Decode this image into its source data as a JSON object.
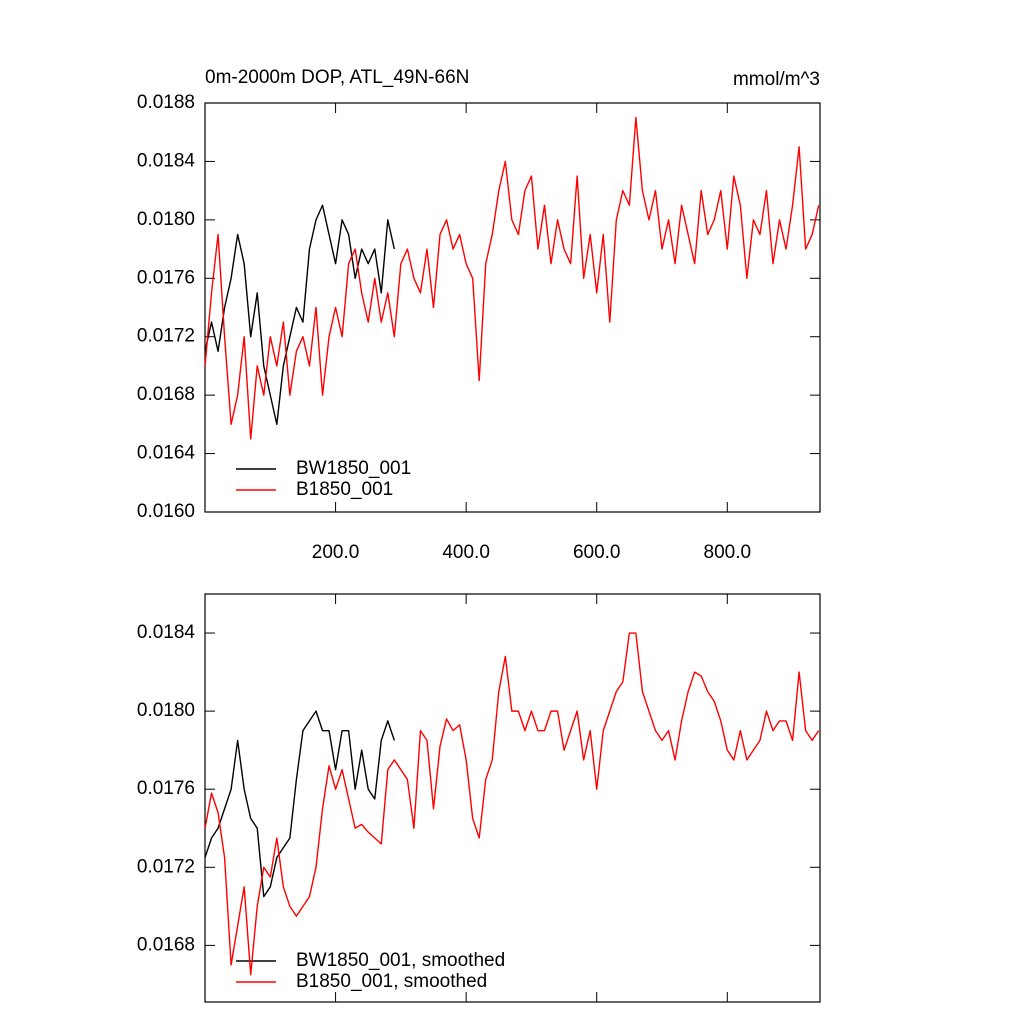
{
  "chart_data": [
    {
      "type": "line",
      "title": "0m-2000m DOP, ATL_49N-66N",
      "units": "mmol/m^3",
      "xlim": [
        0,
        942
      ],
      "ylim": [
        0.016,
        0.0188
      ],
      "xticks": [
        {
          "value": 200,
          "label": "200.0"
        },
        {
          "value": 400,
          "label": "400.0"
        },
        {
          "value": 600,
          "label": "600.0"
        },
        {
          "value": 800,
          "label": "800.0"
        }
      ],
      "yticks": [
        {
          "value": 0.016,
          "label": "0.0160"
        },
        0.0164,
        0.0168,
        0.0172,
        0.0176,
        {
          "value": 0.018,
          "label": "0.0180"
        },
        0.0184,
        0.0188
      ],
      "legend": "lower-left",
      "series": [
        {
          "name": "BW1850_001",
          "color": "#000000",
          "x": [
            0,
            10,
            20,
            30,
            40,
            50,
            60,
            70,
            80,
            90,
            100,
            110,
            120,
            130,
            140,
            150,
            160,
            170,
            180,
            190,
            200,
            210,
            220,
            230,
            240,
            250,
            260,
            270,
            280,
            290
          ],
          "values": [
            0.0171,
            0.0173,
            0.0171,
            0.0174,
            0.0176,
            0.0179,
            0.0177,
            0.0172,
            0.0175,
            0.017,
            0.0168,
            0.0166,
            0.017,
            0.0172,
            0.0174,
            0.0173,
            0.0178,
            0.018,
            0.0181,
            0.0179,
            0.0177,
            0.018,
            0.0179,
            0.0176,
            0.0178,
            0.0177,
            0.0178,
            0.0175,
            0.018,
            0.0178
          ]
        },
        {
          "name": "B1850_001",
          "color": "#ff0000",
          "x": [
            0,
            10,
            20,
            30,
            40,
            50,
            60,
            70,
            80,
            90,
            100,
            110,
            120,
            130,
            140,
            150,
            160,
            170,
            180,
            190,
            200,
            210,
            220,
            230,
            240,
            250,
            260,
            270,
            280,
            290,
            300,
            310,
            320,
            330,
            340,
            350,
            360,
            370,
            380,
            390,
            400,
            410,
            420,
            430,
            440,
            450,
            460,
            470,
            480,
            490,
            500,
            510,
            520,
            530,
            540,
            550,
            560,
            570,
            580,
            590,
            600,
            610,
            620,
            630,
            640,
            650,
            660,
            670,
            680,
            690,
            700,
            710,
            720,
            730,
            740,
            750,
            760,
            770,
            780,
            790,
            800,
            810,
            820,
            830,
            840,
            850,
            860,
            870,
            880,
            890,
            900,
            910,
            920,
            930,
            940
          ],
          "values": [
            0.017,
            0.0175,
            0.0179,
            0.0172,
            0.0166,
            0.0168,
            0.0172,
            0.0165,
            0.017,
            0.0168,
            0.0172,
            0.017,
            0.0173,
            0.0168,
            0.0171,
            0.0172,
            0.017,
            0.0174,
            0.0168,
            0.0172,
            0.0174,
            0.0172,
            0.0177,
            0.0178,
            0.0175,
            0.0173,
            0.0176,
            0.0173,
            0.0175,
            0.0172,
            0.0177,
            0.0178,
            0.0176,
            0.0175,
            0.0178,
            0.0174,
            0.0179,
            0.018,
            0.0178,
            0.0179,
            0.0177,
            0.0176,
            0.0169,
            0.0177,
            0.0179,
            0.0182,
            0.0184,
            0.018,
            0.0179,
            0.0182,
            0.0183,
            0.0178,
            0.0181,
            0.0177,
            0.018,
            0.0178,
            0.0177,
            0.0183,
            0.0176,
            0.0179,
            0.0175,
            0.0179,
            0.0173,
            0.018,
            0.0182,
            0.0181,
            0.0187,
            0.0182,
            0.018,
            0.0182,
            0.0178,
            0.018,
            0.0177,
            0.0181,
            0.0179,
            0.0177,
            0.0182,
            0.0179,
            0.018,
            0.0182,
            0.0178,
            0.0183,
            0.0181,
            0.0176,
            0.018,
            0.0179,
            0.0182,
            0.0177,
            0.018,
            0.0178,
            0.0181,
            0.0185,
            0.0178,
            0.0179,
            0.0181
          ]
        }
      ]
    },
    {
      "type": "line",
      "xlim": [
        0,
        942
      ],
      "ylim": [
        0.01651,
        0.0186
      ],
      "yticks": [
        0.0168,
        0.0172,
        0.0176,
        {
          "value": 0.018,
          "label": "0.0180"
        },
        0.0184
      ],
      "legend": "lower-left",
      "series": [
        {
          "name": "BW1850_001, smoothed",
          "color": "#000000",
          "x": [
            0,
            10,
            20,
            30,
            40,
            50,
            60,
            70,
            80,
            90,
            100,
            110,
            120,
            130,
            140,
            150,
            160,
            170,
            180,
            190,
            200,
            210,
            220,
            230,
            240,
            250,
            260,
            270,
            280,
            290
          ],
          "values": [
            0.01725,
            0.01735,
            0.0174,
            0.0175,
            0.0176,
            0.01785,
            0.0176,
            0.01745,
            0.0174,
            0.01705,
            0.0171,
            0.01725,
            0.0173,
            0.01735,
            0.01765,
            0.0179,
            0.01795,
            0.018,
            0.0179,
            0.0179,
            0.0177,
            0.0179,
            0.0179,
            0.0176,
            0.0178,
            0.0176,
            0.01755,
            0.01785,
            0.01795,
            0.01785
          ]
        },
        {
          "name": "B1850_001, smoothed",
          "color": "#ff0000",
          "x": [
            0,
            10,
            20,
            30,
            40,
            50,
            60,
            70,
            80,
            90,
            100,
            110,
            120,
            130,
            140,
            150,
            160,
            170,
            180,
            190,
            200,
            210,
            220,
            230,
            240,
            250,
            260,
            270,
            280,
            290,
            300,
            310,
            320,
            330,
            340,
            350,
            360,
            370,
            380,
            390,
            400,
            410,
            420,
            430,
            440,
            450,
            460,
            470,
            480,
            490,
            500,
            510,
            520,
            530,
            540,
            550,
            560,
            570,
            580,
            590,
            600,
            610,
            620,
            630,
            640,
            650,
            660,
            670,
            680,
            690,
            700,
            710,
            720,
            730,
            740,
            750,
            760,
            770,
            780,
            790,
            800,
            810,
            820,
            830,
            840,
            850,
            860,
            870,
            880,
            890,
            900,
            910,
            920,
            930,
            940
          ],
          "values": [
            0.0174,
            0.01758,
            0.01748,
            0.01725,
            0.0167,
            0.0169,
            0.0171,
            0.01665,
            0.017,
            0.0172,
            0.01715,
            0.01735,
            0.0171,
            0.017,
            0.01695,
            0.017,
            0.01705,
            0.0172,
            0.0175,
            0.01772,
            0.0176,
            0.0177,
            0.01755,
            0.0174,
            0.01742,
            0.01738,
            0.01735,
            0.01732,
            0.0177,
            0.01775,
            0.0177,
            0.01765,
            0.0174,
            0.0179,
            0.01785,
            0.0175,
            0.01782,
            0.01796,
            0.0179,
            0.01793,
            0.01775,
            0.01745,
            0.01735,
            0.01765,
            0.01775,
            0.0181,
            0.01828,
            0.018,
            0.018,
            0.0179,
            0.018,
            0.0179,
            0.0179,
            0.018,
            0.018,
            0.0178,
            0.0179,
            0.018,
            0.01775,
            0.0179,
            0.0176,
            0.0179,
            0.018,
            0.0181,
            0.01815,
            0.0184,
            0.0184,
            0.0181,
            0.018,
            0.0179,
            0.01785,
            0.0179,
            0.01775,
            0.01795,
            0.0181,
            0.0182,
            0.01818,
            0.0181,
            0.01805,
            0.01795,
            0.0178,
            0.01775,
            0.0179,
            0.01775,
            0.0178,
            0.01785,
            0.018,
            0.0179,
            0.01795,
            0.01795,
            0.01785,
            0.0182,
            0.0179,
            0.01785,
            0.0179
          ]
        }
      ]
    }
  ]
}
